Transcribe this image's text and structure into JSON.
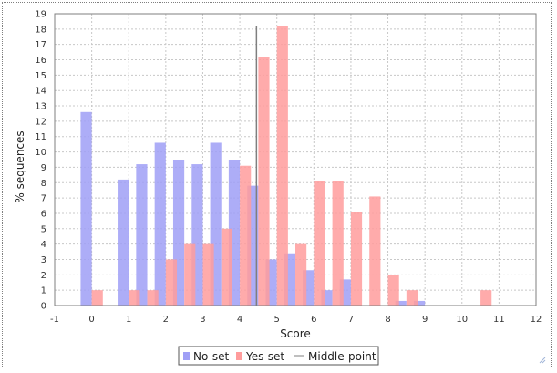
{
  "chart_data": {
    "type": "bar",
    "xlabel": "Score",
    "ylabel": "% sequences",
    "xlim": [
      -1,
      12
    ],
    "ylim": [
      0,
      19
    ],
    "x_ticks": [
      -1,
      0,
      1,
      2,
      3,
      4,
      5,
      6,
      7,
      8,
      9,
      10,
      11,
      12
    ],
    "y_ticks": [
      0,
      1,
      2,
      3,
      4,
      5,
      6,
      7,
      8,
      9,
      10,
      11,
      12,
      13,
      14,
      15,
      16,
      17,
      18,
      19
    ],
    "grid": true,
    "legend_position": "bottom-center",
    "bar_width": 0.3,
    "series": [
      {
        "name": "No-set",
        "color": "#9f9ff6",
        "points": [
          {
            "x": 0,
            "y": 12.6
          },
          {
            "x": 1,
            "y": 8.2
          },
          {
            "x": 1.5,
            "y": 9.2
          },
          {
            "x": 2,
            "y": 10.6
          },
          {
            "x": 2.5,
            "y": 9.5
          },
          {
            "x": 3,
            "y": 9.2
          },
          {
            "x": 3.5,
            "y": 10.6
          },
          {
            "x": 4,
            "y": 9.5
          },
          {
            "x": 4.5,
            "y": 7.8
          },
          {
            "x": 5,
            "y": 3.0
          },
          {
            "x": 5.5,
            "y": 3.4
          },
          {
            "x": 6,
            "y": 2.3
          },
          {
            "x": 6.5,
            "y": 1.0
          },
          {
            "x": 7,
            "y": 1.7
          },
          {
            "x": 8.5,
            "y": 0.3
          },
          {
            "x": 9,
            "y": 0.3
          }
        ]
      },
      {
        "name": "Yes-set",
        "color": "#ff9c9c",
        "points": [
          {
            "x": 0,
            "y": 1.0
          },
          {
            "x": 1,
            "y": 1.0
          },
          {
            "x": 1.5,
            "y": 1.0
          },
          {
            "x": 2,
            "y": 3.0
          },
          {
            "x": 2.5,
            "y": 4.0
          },
          {
            "x": 3,
            "y": 4.0
          },
          {
            "x": 3.5,
            "y": 5.0
          },
          {
            "x": 4,
            "y": 9.1
          },
          {
            "x": 4.5,
            "y": 16.2
          },
          {
            "x": 5,
            "y": 18.2
          },
          {
            "x": 5.5,
            "y": 4.0
          },
          {
            "x": 6,
            "y": 8.1
          },
          {
            "x": 6.5,
            "y": 8.1
          },
          {
            "x": 7,
            "y": 6.1
          },
          {
            "x": 7.5,
            "y": 7.1
          },
          {
            "x": 8,
            "y": 2.0
          },
          {
            "x": 8.5,
            "y": 1.0
          },
          {
            "x": 10.5,
            "y": 1.0
          }
        ]
      }
    ],
    "middle_point": {
      "name": "Middle-point",
      "x": 4.45,
      "y_range": [
        0,
        18.2
      ],
      "color": "#7f7f7f"
    },
    "legend": [
      "No-set",
      "Yes-set",
      "Middle-point"
    ]
  },
  "colors": {
    "grid": "#c8c8c8",
    "axis": "#7f7f7f",
    "resize_grip": "#a0b4d8"
  }
}
